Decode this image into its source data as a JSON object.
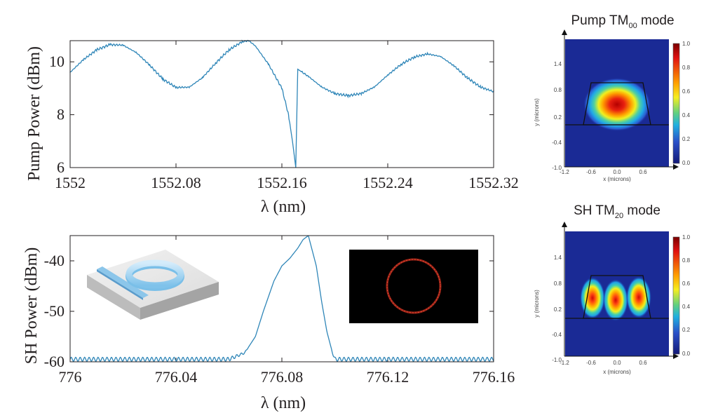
{
  "chart_data": [
    {
      "type": "line",
      "xlabel": "λ (nm)",
      "ylabel": "Pump Power (dBm)",
      "xlim": [
        1552,
        1552.32
      ],
      "ylim": [
        6,
        10.8
      ],
      "xticks": [
        1552,
        1552.08,
        1552.16,
        1552.24,
        1552.32
      ],
      "xtick_labels": [
        "1552",
        "1552.08",
        "1552.16",
        "1552.24",
        "1552.32"
      ],
      "yticks": [
        6,
        8,
        10
      ],
      "ytick_labels": [
        "6",
        "8",
        "10"
      ],
      "line_color": "#2f86b8",
      "series": [
        {
          "x": [
            1552,
            1552.01,
            1552.02,
            1552.03,
            1552.04,
            1552.05,
            1552.06,
            1552.07,
            1552.08,
            1552.09,
            1552.1,
            1552.11,
            1552.12,
            1552.13,
            1552.135,
            1552.14,
            1552.15,
            1552.16,
            1552.165,
            1552.168,
            1552.1705,
            1552.172,
            1552.18,
            1552.19,
            1552.2,
            1552.21,
            1552.22,
            1552.23,
            1552.24,
            1552.25,
            1552.26,
            1552.27,
            1552.28,
            1552.29,
            1552.3,
            1552.31,
            1552.32
          ],
          "y": [
            9.6,
            10.08,
            10.45,
            10.65,
            10.63,
            10.35,
            9.88,
            9.35,
            9.03,
            9.04,
            9.4,
            9.95,
            10.45,
            10.76,
            10.8,
            10.6,
            9.9,
            9.0,
            8.0,
            7.0,
            6.0,
            9.72,
            9.45,
            9.05,
            8.8,
            8.72,
            8.8,
            9.05,
            9.5,
            9.9,
            10.18,
            10.3,
            10.2,
            9.85,
            9.4,
            9.05,
            8.87
          ]
        }
      ]
    },
    {
      "type": "line",
      "xlabel": "λ (nm)",
      "ylabel": "SH Power (dBm)",
      "xlim": [
        776,
        776.16
      ],
      "ylim": [
        -60,
        -35
      ],
      "xticks": [
        776,
        776.04,
        776.08,
        776.12,
        776.16
      ],
      "xtick_labels": [
        "776",
        "776.04",
        "776.08",
        "776.12",
        "776.16"
      ],
      "yticks": [
        -60,
        -50,
        -40
      ],
      "ytick_labels": [
        "-60",
        "-50",
        "-40"
      ],
      "line_color": "#2f86b8",
      "ripple_amplitude_db": 0.4,
      "series": [
        {
          "x": [
            776,
            776.06,
            776.066,
            776.07,
            776.073,
            776.077,
            776.08,
            776.083,
            776.086,
            776.088,
            776.09,
            776.093,
            776.095,
            776.097,
            776.099,
            776.1,
            776.16
          ],
          "y": [
            -59.5,
            -59.5,
            -58.2,
            -55,
            -50,
            -44,
            -41,
            -39.5,
            -37.5,
            -35.8,
            -35,
            -41,
            -48,
            -54,
            -58,
            -59.5,
            -59.5
          ]
        }
      ]
    }
  ],
  "mode_panels": [
    {
      "title_main": "Pump TM",
      "title_sub": "00",
      "title_end": " mode",
      "xlabel": "x (microns)",
      "ylabel": "y (microns)",
      "xtick_labels": [
        "-1.2",
        "-0.6",
        "0.0",
        "0.6"
      ],
      "ytick_labels": [
        "1.4",
        "0.8",
        "0.2",
        "-0.4",
        "-1.0"
      ],
      "colorbar_labels": [
        "1.0",
        "0.8",
        "0.6",
        "0.4",
        "0.2",
        "0.0"
      ]
    },
    {
      "title_main": "SH TM",
      "title_sub": "20",
      "title_end": " mode",
      "xlabel": "x (microns)",
      "ylabel": "y (microns)",
      "xtick_labels": [
        "-1.2",
        "-0.6",
        "0.0",
        "0.6"
      ],
      "ytick_labels": [
        "1.4",
        "0.8",
        "0.2",
        "-0.4",
        "-1.0"
      ],
      "colorbar_labels": [
        "1.0",
        "0.8",
        "0.6",
        "0.4",
        "0.2",
        "0.0"
      ]
    }
  ],
  "colors": {
    "field_background": "#1a2a95",
    "colorbar": [
      "#7a0000",
      "#e01010",
      "#ffa000",
      "#f5ee20",
      "#60d080",
      "#20b0e0",
      "#2a50c8",
      "#141a78"
    ]
  }
}
